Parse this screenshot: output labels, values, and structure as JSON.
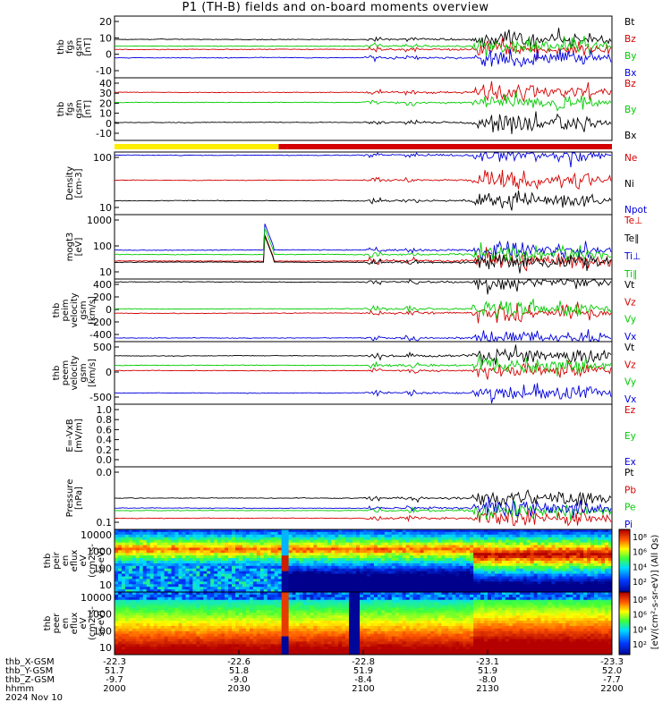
{
  "title": "P1 (TH-B) fields and on-board moments overview",
  "colors": {
    "black": "#000000",
    "red": "#d40000",
    "green": "#00cc00",
    "blue": "#0000dd",
    "yellow": "#ffee00"
  },
  "chart_data": {
    "type": "line",
    "title": "P1 (TH-B) fields and on-board moments overview",
    "date": "2024 Nov 10",
    "x_axis": {
      "ticks": [
        "2000",
        "2030",
        "2100",
        "2130",
        "2200"
      ],
      "range": [
        "2000",
        "2200"
      ],
      "rows": [
        {
          "label": "thb_X-GSM",
          "values": [
            "-22.3",
            "-22.6",
            "-22.8",
            "-23.1",
            "-23.3"
          ]
        },
        {
          "label": "thb_Y-GSM",
          "values": [
            "51.7",
            "51.8",
            "51.9",
            "51.9",
            "52.0"
          ]
        },
        {
          "label": "thb_Z-GSM",
          "values": [
            "-9.7",
            "-9.0",
            "-8.4",
            "-8.0",
            "-7.7"
          ]
        },
        {
          "label": "hhmm",
          "values": [
            "2000",
            "2030",
            "2100",
            "2130",
            "2200"
          ]
        }
      ]
    },
    "panels": [
      {
        "id": "fgs-gsm",
        "ylabel": [
          "thb",
          "fgs",
          "gsm",
          "[nT]"
        ],
        "yticks": [
          "20",
          "10",
          "0",
          "-10"
        ],
        "ylim": [
          -15,
          22
        ],
        "series": [
          {
            "name": "Bt",
            "color": "black"
          },
          {
            "name": "Bz",
            "color": "red"
          },
          {
            "name": "By",
            "color": "green"
          },
          {
            "name": "Bx",
            "color": "blue"
          }
        ]
      },
      {
        "id": "fgs-gsm-2",
        "ylabel": [
          "thb",
          "fgs",
          "gsm",
          "[nT]"
        ],
        "yticks": [
          "40",
          "30",
          "20",
          "10",
          "0",
          "-10"
        ],
        "ylim": [
          -16,
          40
        ],
        "series": [
          {
            "name": "Bz",
            "color": "red"
          },
          {
            "name": "By",
            "color": "green"
          },
          {
            "name": "Bx",
            "color": "black"
          }
        ]
      },
      {
        "id": "density",
        "ylabel": [
          "Density",
          "[cm-3]"
        ],
        "yticks": [
          "100",
          "10"
        ],
        "scale": "log",
        "series": [
          {
            "name": "Ne",
            "color": "red"
          },
          {
            "name": "Ni",
            "color": "black"
          },
          {
            "name": "Npot",
            "color": "blue"
          }
        ]
      },
      {
        "id": "temperature",
        "ylabel": [
          "mogt3",
          "[eV]"
        ],
        "yticks": [
          "1000",
          "100",
          "10"
        ],
        "scale": "log",
        "series": [
          {
            "name": "Te⊥",
            "color": "red"
          },
          {
            "name": "Te∥",
            "color": "black"
          },
          {
            "name": "Ti⊥",
            "color": "blue"
          },
          {
            "name": "Ti∥",
            "color": "green"
          }
        ]
      },
      {
        "id": "ion-velocity",
        "ylabel": [
          "thb",
          "peim",
          "velocity",
          "gsm",
          "[km/s]"
        ],
        "yticks": [
          "400",
          "200",
          "0",
          "-200",
          "-400"
        ],
        "ylim": [
          -430,
          430
        ],
        "series": [
          {
            "name": "Vt",
            "color": "black"
          },
          {
            "name": "Vz",
            "color": "red"
          },
          {
            "name": "Vy",
            "color": "green"
          },
          {
            "name": "Vx",
            "color": "blue"
          }
        ]
      },
      {
        "id": "electron-velocity",
        "ylabel": [
          "thb",
          "peem",
          "velocity",
          "gsm",
          "[km/s]"
        ],
        "yticks": [
          "500",
          "0",
          "-500"
        ],
        "ylim": [
          -700,
          750
        ],
        "series": [
          {
            "name": "Vt",
            "color": "black"
          },
          {
            "name": "Vz",
            "color": "red"
          },
          {
            "name": "Vy",
            "color": "green"
          },
          {
            "name": "Vx",
            "color": "blue"
          }
        ]
      },
      {
        "id": "e-field",
        "ylabel": [
          "E=-VxB",
          "[mV/m]"
        ],
        "yticks": [
          "1.0",
          "0.8",
          "0.6",
          "0.4",
          "0.2",
          "0.0"
        ],
        "ylim": [
          0,
          1
        ],
        "series": [
          {
            "name": "Ez",
            "color": "red"
          },
          {
            "name": "Ey",
            "color": "green"
          },
          {
            "name": "Ex",
            "color": "blue"
          }
        ]
      },
      {
        "id": "pressure",
        "ylabel": [
          "Pressure",
          "[nPa]"
        ],
        "yticks": [
          "0.0",
          "0.1"
        ],
        "scale": "log",
        "series": [
          {
            "name": "Pt",
            "color": "black"
          },
          {
            "name": "Pb",
            "color": "red"
          },
          {
            "name": "Pe",
            "color": "green"
          },
          {
            "name": "Pi",
            "color": "blue"
          }
        ]
      },
      {
        "id": "ion-spectrogram",
        "ylabel": [
          "thb",
          "peir",
          "en",
          "eflux",
          "eV",
          "(cm2-s-",
          "sr-eV)"
        ],
        "yticks": [
          "10000",
          "1000",
          "100",
          "10"
        ],
        "scale": "log"
      },
      {
        "id": "electron-spectrogram",
        "ylabel": [
          "thb",
          "peer",
          "en",
          "eflux",
          "eV",
          "(cm2-s-",
          "sr-eV)"
        ],
        "yticks": [
          "10000",
          "1000",
          "100",
          "10"
        ],
        "scale": "log"
      }
    ],
    "colorbar": {
      "label": "[eV/(cm²-s-sr-eV)] (All Qs)",
      "ion_ticks": [
        "10⁸",
        "10⁶",
        "10⁴",
        "10²"
      ],
      "electron_ticks": [
        "10⁸",
        "10⁶",
        "10⁴",
        "10²"
      ]
    },
    "mode_bar": [
      {
        "color": "yellow"
      },
      {
        "color": "red"
      }
    ]
  }
}
